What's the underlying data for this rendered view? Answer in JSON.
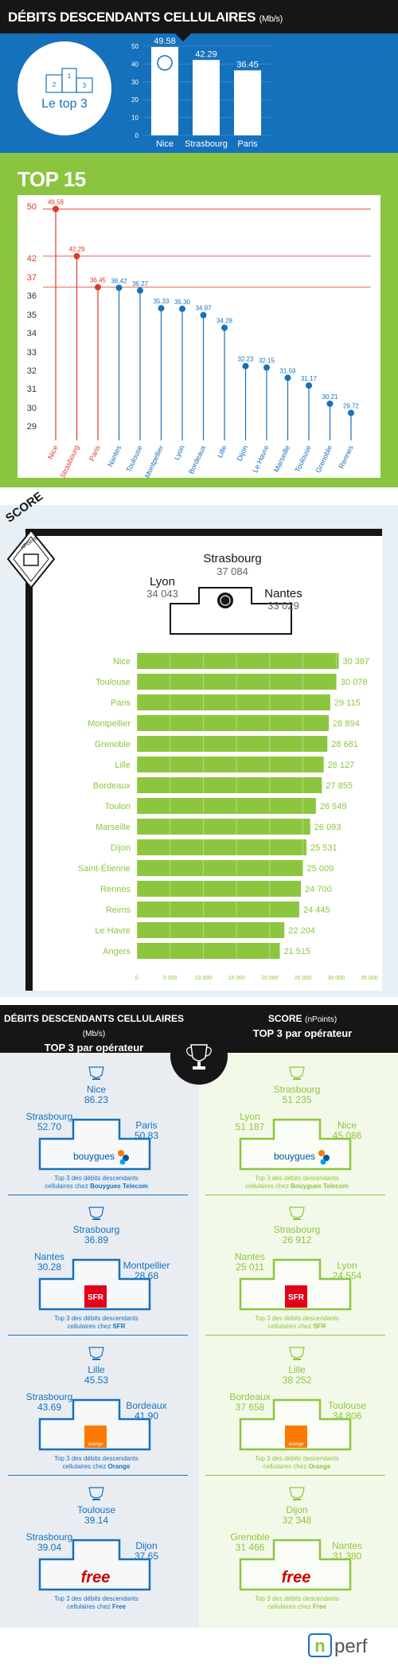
{
  "header": {
    "title": "DÉBITS DESCENDANTS CELLULAIRES",
    "unit": "(Mb/s)"
  },
  "top3": {
    "badge": "Le top 3",
    "podium_numbers": [
      "1",
      "2",
      "3"
    ]
  },
  "top15": {
    "title": "TOP 15"
  },
  "score": {
    "label": "SCORE",
    "sublabel": "nPoints",
    "podium": [
      {
        "city": "Strasbourg",
        "value": "37 084"
      },
      {
        "city": "Lyon",
        "value": "34 043"
      },
      {
        "city": "Nantes",
        "value": "33 029"
      }
    ]
  },
  "operators_header": {
    "left_line1": "DÉBITS DESCENDANTS CELLULAIRES",
    "left_unit": "(Mb/s)",
    "left_line2": "TOP 3 par opérateur",
    "right_line1": "SCORE",
    "right_unit": "(nPoints)",
    "right_line2": "TOP 3 par opérateur"
  },
  "operators": [
    {
      "name": "bouygues",
      "debit": {
        "first": [
          "Nice",
          "86.23"
        ],
        "second": [
          "Strasbourg",
          "52.70"
        ],
        "third": [
          "Paris",
          "50.83"
        ],
        "caption1": "Top 3 des débits descendants",
        "caption2": "cellulaires chez",
        "caption_op": "Bouygues Telecom"
      },
      "score": {
        "first": [
          "Strasbourg",
          "51 235"
        ],
        "second": [
          "Lyon",
          "51 187"
        ],
        "third": [
          "Nice",
          "45 086"
        ],
        "caption1": "Top 3 des débits descendants",
        "caption2": "cellulaires chez",
        "caption_op": "Bouygues Telecom"
      }
    },
    {
      "name": "SFR",
      "debit": {
        "first": [
          "Strasbourg",
          "36.89"
        ],
        "second": [
          "Nantes",
          "30.28"
        ],
        "third": [
          "Montpellier",
          "28.68"
        ],
        "caption1": "Top 3 des débits descendants",
        "caption2": "cellulaires chez",
        "caption_op": "SFR"
      },
      "score": {
        "first": [
          "Strasbourg",
          "26 912"
        ],
        "second": [
          "Nantes",
          "25 011"
        ],
        "third": [
          "Lyon",
          "24 554"
        ],
        "caption1": "Top 3 des débits descendants",
        "caption2": "cellulaires chez",
        "caption_op": "SFR"
      }
    },
    {
      "name": "orange",
      "debit": {
        "first": [
          "Lille",
          "45.53"
        ],
        "second": [
          "Strasbourg",
          "43.69"
        ],
        "third": [
          "Bordeaux",
          "41.90"
        ],
        "caption1": "Top 3 des débits descendants",
        "caption2": "cellulaires chez",
        "caption_op": "Orange"
      },
      "score": {
        "first": [
          "Lille",
          "38 252"
        ],
        "second": [
          "Bordeaux",
          "37 658"
        ],
        "third": [
          "Toulouse",
          "34 806"
        ],
        "caption1": "Top 3 des débits descendants",
        "caption2": "cellulaires chez",
        "caption_op": "Orange"
      }
    },
    {
      "name": "free",
      "debit": {
        "first": [
          "Toulouse",
          "39.14"
        ],
        "second": [
          "Strasbourg",
          "39.04"
        ],
        "third": [
          "Dijon",
          "37.65"
        ],
        "caption1": "Top 3 des débits descendants",
        "caption2": "cellulaires chez",
        "caption_op": "Free"
      },
      "score": {
        "first": [
          "Dijon",
          "32 348"
        ],
        "second": [
          "Grenoble",
          "31 466"
        ],
        "third": [
          "Nantes",
          "31 380"
        ],
        "caption1": "Top 3 des débits descendants",
        "caption2": "cellulaires chez",
        "caption_op": "Free"
      }
    }
  ],
  "footer": {
    "brand_n": "n",
    "brand_rest": "perf"
  },
  "colors": {
    "blue": "#1671bd",
    "green": "#8bc53f",
    "red": "#e2382b",
    "dark": "#161616",
    "bar_green": "#8cc63f",
    "orange": "#ff7900",
    "sfr_red": "#e2001a",
    "free_red": "#cc0000"
  },
  "chart_data": [
    {
      "type": "bar",
      "categories": [
        "Nice",
        "Strasbourg",
        "Paris"
      ],
      "values": [
        49.58,
        42.29,
        36.45
      ],
      "ylim": [
        0,
        50
      ],
      "yticks": [
        0,
        10,
        20,
        30,
        40,
        50
      ]
    },
    {
      "type": "scatter",
      "categories": [
        "Nice",
        "Strasbourg",
        "Paris",
        "Nantes",
        "Toulouse",
        "Montpellier",
        "Lyon",
        "Bordeaux",
        "Lille",
        "Dijon",
        "Le Havre",
        "Marseille",
        "Toulouse",
        "Grenoble",
        "Rennes"
      ],
      "values": [
        49.58,
        42.29,
        36.45,
        36.42,
        36.27,
        35.33,
        35.3,
        34.97,
        34.28,
        32.23,
        32.15,
        31.59,
        31.17,
        30.21,
        29.72
      ],
      "yticks": [
        29,
        30,
        31,
        32,
        33,
        34,
        35,
        36,
        37,
        42,
        50
      ],
      "highlight_top": 3
    },
    {
      "type": "bar",
      "orientation": "horizontal",
      "categories": [
        "Nice",
        "Toulouse",
        "Paris",
        "Montpellier",
        "Grenoble",
        "Lille",
        "Bordeaux",
        "Toulon",
        "Marseille",
        "Dijon",
        "Saint-Étienne",
        "Rennes",
        "Reims",
        "Le Havre",
        "Angers"
      ],
      "values": [
        30387,
        30078,
        29115,
        28894,
        28681,
        28127,
        27855,
        26949,
        26093,
        25531,
        25009,
        24700,
        24445,
        22204,
        21515
      ],
      "value_labels": [
        "30 387",
        "30 078",
        "29 115",
        "28 894",
        "28 681",
        "28 127",
        "27 855",
        "26 949",
        "26 093",
        "25 531",
        "25 009",
        "24 700",
        "24 445",
        "22 204",
        "21 515"
      ],
      "xlim": [
        0,
        35000
      ],
      "xticks": [
        "0",
        "5 000",
        "10 000",
        "15 000",
        "20 000",
        "25 000",
        "30 000",
        "35 000"
      ]
    }
  ]
}
